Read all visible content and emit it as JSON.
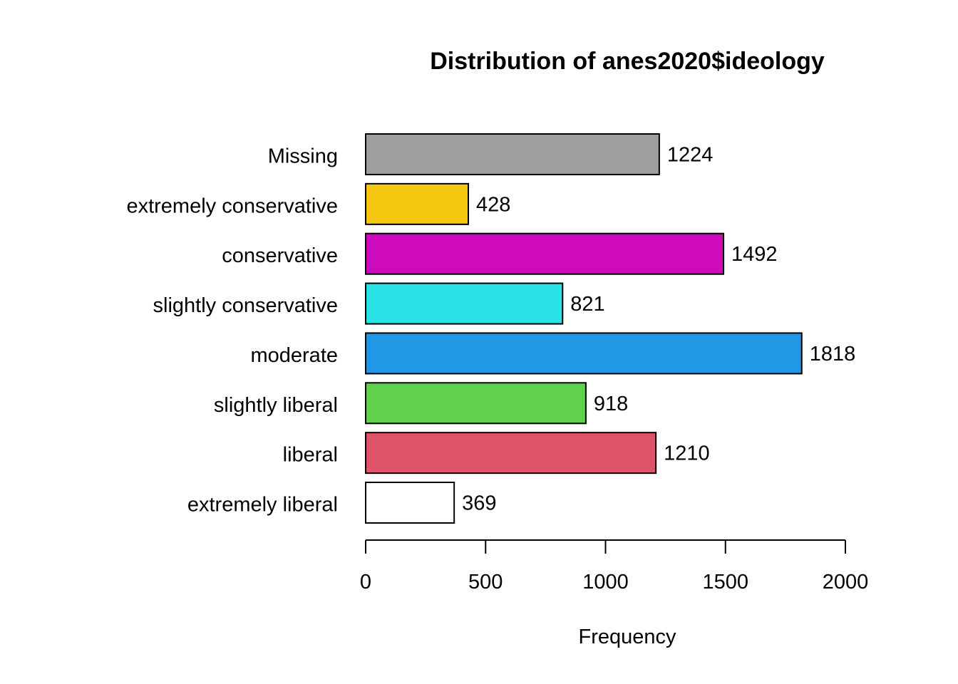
{
  "chart_data": {
    "type": "bar",
    "orientation": "horizontal",
    "title": "Distribution of anes2020$ideology",
    "xlabel": "Frequency",
    "ylabel": "",
    "xlim": [
      0,
      2000
    ],
    "xticks": [
      0,
      500,
      1000,
      1500,
      2000
    ],
    "grid": false,
    "categories": [
      "Missing",
      "extremely conservative",
      "conservative",
      "slightly conservative",
      "moderate",
      "slightly liberal",
      "liberal",
      "extremely liberal"
    ],
    "values": [
      1224,
      428,
      1492,
      821,
      1818,
      918,
      1210,
      369
    ],
    "colors": [
      "#9E9E9E",
      "#F5C710",
      "#CD0BBC",
      "#28E2E5",
      "#2297E6",
      "#61D04F",
      "#DF536B",
      "#FFFFFF"
    ],
    "value_labels_shown": true
  }
}
